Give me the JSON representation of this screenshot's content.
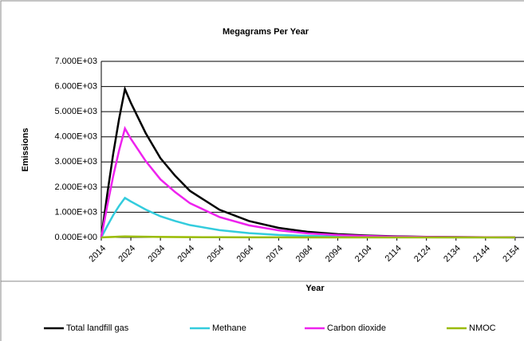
{
  "chart_data": {
    "type": "line",
    "title": "Megagrams Per Year",
    "x_label": "Year",
    "y_label": "Emissions",
    "x": [
      2014,
      2016,
      2018,
      2020,
      2022,
      2024,
      2029,
      2034,
      2039,
      2044,
      2054,
      2064,
      2074,
      2084,
      2094,
      2104,
      2114,
      2124,
      2134,
      2144,
      2154
    ],
    "series": [
      {
        "name": "Total landfill gas",
        "color": "#000000",
        "values": [
          0,
          1700,
          3300,
          4700,
          5900,
          5350,
          4150,
          3150,
          2450,
          1850,
          1100,
          650,
          380,
          220,
          130,
          75,
          45,
          25,
          15,
          9,
          5
        ]
      },
      {
        "name": "Methane",
        "color": "#33ccdd",
        "values": [
          0,
          450,
          880,
          1250,
          1570,
          1430,
          1110,
          840,
          650,
          490,
          290,
          170,
          100,
          60,
          35,
          20,
          12,
          7,
          4,
          2,
          1
        ]
      },
      {
        "name": "Carbon dioxide",
        "color": "#ee22ee",
        "values": [
          0,
          1250,
          2420,
          3450,
          4330,
          3920,
          3040,
          2310,
          1800,
          1360,
          810,
          480,
          280,
          160,
          95,
          55,
          33,
          18,
          11,
          7,
          4
        ]
      },
      {
        "name": "NMOC",
        "color": "#99bb00",
        "values": [
          0,
          10,
          20,
          30,
          40,
          36,
          28,
          21,
          16,
          12,
          7,
          4,
          3,
          1,
          1,
          0,
          0,
          0,
          0,
          0,
          0
        ]
      }
    ],
    "xlim": [
      2014,
      2157
    ],
    "xticks": [
      2014,
      2024,
      2034,
      2044,
      2054,
      2064,
      2074,
      2084,
      2094,
      2104,
      2114,
      2124,
      2134,
      2144,
      2154
    ],
    "ylim": [
      0,
      7000
    ],
    "yticks": [
      {
        "value": 0,
        "label": "0.000E+00"
      },
      {
        "value": 1000,
        "label": "1.000E+03"
      },
      {
        "value": 2000,
        "label": "2.000E+03"
      },
      {
        "value": 3000,
        "label": "3.000E+03"
      },
      {
        "value": 4000,
        "label": "4.000E+03"
      },
      {
        "value": 5000,
        "label": "5.000E+03"
      },
      {
        "value": 6000,
        "label": "6.000E+03"
      },
      {
        "value": 7000,
        "label": "7.000E+03"
      }
    ],
    "grid": true,
    "legend": "bottom"
  }
}
